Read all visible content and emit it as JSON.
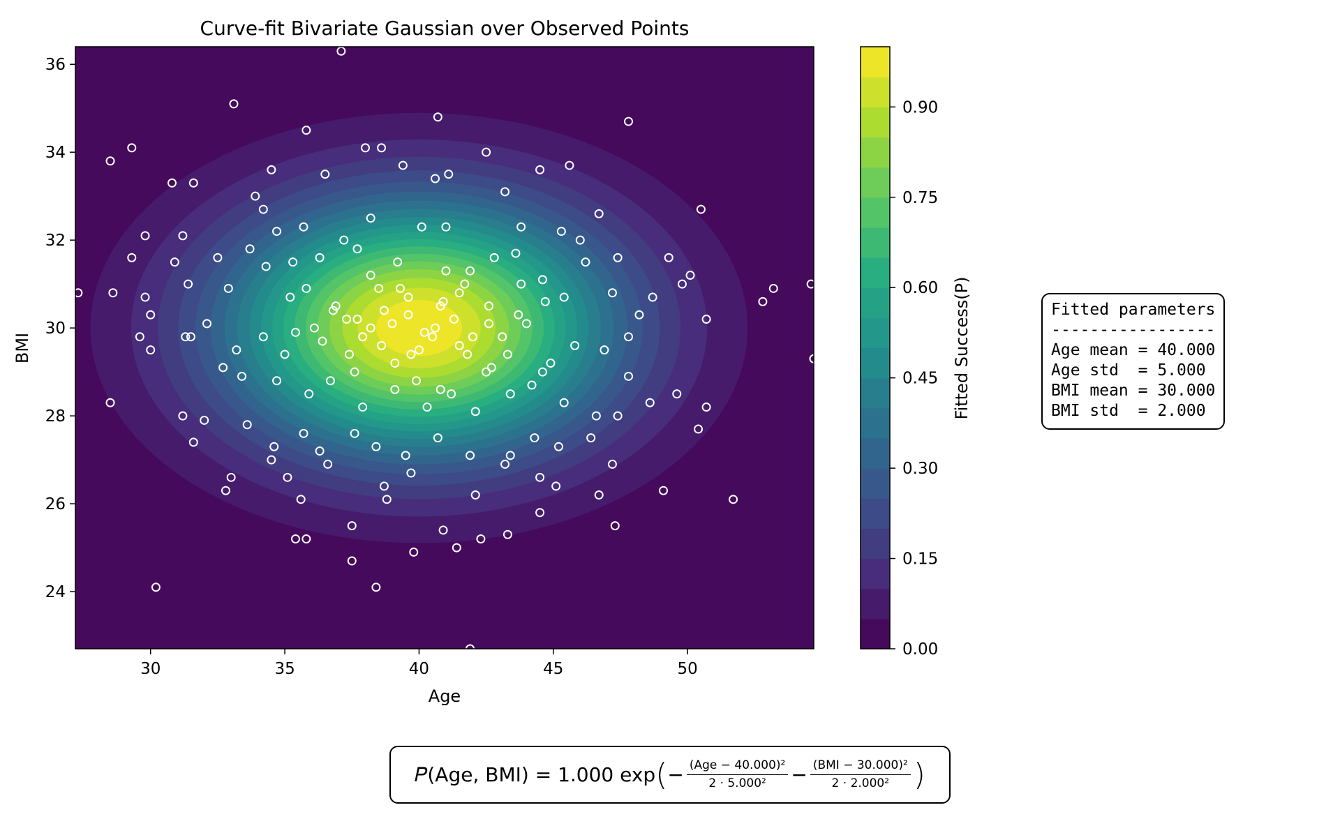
{
  "chart_data": {
    "type": "scatter",
    "title": "Curve-fit Bivariate Gaussian over Observed Points",
    "xlabel": "Age",
    "ylabel": "BMI",
    "xlim": [
      27.2,
      54.7
    ],
    "ylim": [
      22.7,
      36.4
    ],
    "xticks": [
      30,
      35,
      40,
      45,
      50
    ],
    "yticks": [
      24,
      26,
      28,
      30,
      32,
      34,
      36
    ],
    "grid": false,
    "background": "contourf",
    "colormap": "viridis",
    "colorbar": {
      "label": "Fitted Success(P)",
      "ticks": [
        "0.00",
        "0.15",
        "0.30",
        "0.45",
        "0.60",
        "0.75",
        "0.90"
      ],
      "range": [
        0,
        1
      ],
      "levels": 20
    },
    "fit": {
      "amplitude": 1.0,
      "age_mean": 40.0,
      "age_std": 5.0,
      "bmi_mean": 30.0,
      "bmi_std": 2.0
    },
    "points": [
      [
        37.1,
        36.3
      ],
      [
        33.1,
        35.1
      ],
      [
        40.7,
        34.8
      ],
      [
        47.8,
        34.7
      ],
      [
        29.3,
        34.1
      ],
      [
        35.8,
        34.5
      ],
      [
        31.6,
        33.3
      ],
      [
        30.8,
        33.3
      ],
      [
        28.5,
        33.8
      ],
      [
        34.5,
        33.6
      ],
      [
        36.5,
        33.5
      ],
      [
        38.0,
        34.1
      ],
      [
        38.6,
        34.1
      ],
      [
        39.4,
        33.7
      ],
      [
        40.6,
        33.4
      ],
      [
        41.1,
        33.5
      ],
      [
        42.5,
        34.0
      ],
      [
        44.5,
        33.6
      ],
      [
        45.6,
        33.7
      ],
      [
        46.7,
        32.6
      ],
      [
        50.5,
        32.7
      ],
      [
        43.2,
        33.1
      ],
      [
        33.9,
        33.0
      ],
      [
        34.2,
        32.7
      ],
      [
        35.7,
        32.3
      ],
      [
        34.7,
        32.2
      ],
      [
        37.2,
        32.0
      ],
      [
        38.2,
        32.5
      ],
      [
        40.1,
        32.3
      ],
      [
        41.0,
        32.3
      ],
      [
        43.8,
        32.3
      ],
      [
        45.3,
        32.2
      ],
      [
        46.0,
        32.0
      ],
      [
        29.8,
        32.1
      ],
      [
        31.2,
        32.1
      ],
      [
        32.5,
        31.6
      ],
      [
        33.7,
        31.8
      ],
      [
        34.3,
        31.4
      ],
      [
        35.3,
        31.5
      ],
      [
        36.3,
        31.6
      ],
      [
        37.7,
        31.8
      ],
      [
        39.2,
        31.5
      ],
      [
        41.0,
        31.3
      ],
      [
        42.8,
        31.6
      ],
      [
        43.6,
        31.7
      ],
      [
        44.6,
        31.1
      ],
      [
        46.2,
        31.5
      ],
      [
        47.4,
        31.6
      ],
      [
        49.3,
        31.6
      ],
      [
        29.3,
        31.6
      ],
      [
        30.9,
        31.5
      ],
      [
        31.4,
        31.0
      ],
      [
        32.9,
        30.9
      ],
      [
        35.2,
        30.7
      ],
      [
        35.8,
        30.9
      ],
      [
        36.8,
        30.4
      ],
      [
        37.7,
        30.2
      ],
      [
        38.5,
        30.9
      ],
      [
        39.6,
        30.7
      ],
      [
        40.8,
        30.5
      ],
      [
        41.7,
        31.0
      ],
      [
        42.6,
        30.5
      ],
      [
        43.7,
        30.3
      ],
      [
        44.7,
        30.6
      ],
      [
        45.4,
        30.7
      ],
      [
        47.2,
        30.8
      ],
      [
        48.7,
        30.7
      ],
      [
        49.8,
        31.0
      ],
      [
        50.1,
        31.2
      ],
      [
        52.8,
        30.6
      ],
      [
        53.2,
        30.9
      ],
      [
        27.3,
        30.8
      ],
      [
        28.6,
        30.8
      ],
      [
        29.8,
        30.7
      ],
      [
        30.0,
        30.3
      ],
      [
        31.5,
        29.8
      ],
      [
        32.1,
        30.1
      ],
      [
        33.2,
        29.5
      ],
      [
        34.2,
        29.8
      ],
      [
        35.4,
        29.9
      ],
      [
        36.4,
        29.7
      ],
      [
        37.4,
        29.4
      ],
      [
        38.6,
        29.6
      ],
      [
        39.7,
        29.4
      ],
      [
        40.5,
        29.8
      ],
      [
        41.5,
        29.6
      ],
      [
        42.7,
        29.1
      ],
      [
        43.3,
        29.4
      ],
      [
        44.6,
        29.0
      ],
      [
        45.8,
        29.6
      ],
      [
        46.9,
        29.5
      ],
      [
        47.8,
        29.8
      ],
      [
        48.2,
        30.3
      ],
      [
        50.7,
        30.2
      ],
      [
        54.6,
        31.0
      ],
      [
        54.7,
        29.3
      ],
      [
        29.6,
        29.8
      ],
      [
        30.0,
        29.5
      ],
      [
        31.3,
        29.8
      ],
      [
        32.7,
        29.1
      ],
      [
        33.4,
        28.9
      ],
      [
        34.7,
        28.8
      ],
      [
        35.9,
        28.5
      ],
      [
        36.7,
        28.8
      ],
      [
        37.9,
        28.2
      ],
      [
        39.1,
        28.6
      ],
      [
        40.3,
        28.2
      ],
      [
        41.2,
        28.5
      ],
      [
        42.1,
        28.1
      ],
      [
        43.4,
        28.5
      ],
      [
        44.2,
        28.7
      ],
      [
        45.4,
        28.3
      ],
      [
        46.6,
        28.0
      ],
      [
        47.8,
        28.9
      ],
      [
        48.6,
        28.3
      ],
      [
        50.7,
        28.2
      ],
      [
        49.6,
        28.5
      ],
      [
        28.5,
        28.3
      ],
      [
        31.2,
        28.0
      ],
      [
        32.0,
        27.9
      ],
      [
        33.6,
        27.8
      ],
      [
        34.6,
        27.3
      ],
      [
        35.7,
        27.6
      ],
      [
        36.3,
        27.2
      ],
      [
        37.6,
        27.6
      ],
      [
        38.4,
        27.3
      ],
      [
        39.5,
        27.1
      ],
      [
        40.7,
        27.5
      ],
      [
        41.9,
        27.1
      ],
      [
        43.4,
        27.1
      ],
      [
        44.3,
        27.5
      ],
      [
        45.2,
        27.3
      ],
      [
        46.4,
        27.5
      ],
      [
        47.4,
        28.0
      ],
      [
        50.4,
        27.7
      ],
      [
        31.6,
        27.4
      ],
      [
        33.0,
        26.6
      ],
      [
        32.8,
        26.3
      ],
      [
        34.5,
        27.0
      ],
      [
        35.1,
        26.6
      ],
      [
        36.6,
        26.9
      ],
      [
        38.7,
        26.4
      ],
      [
        39.7,
        26.7
      ],
      [
        42.1,
        26.2
      ],
      [
        43.2,
        26.9
      ],
      [
        44.5,
        26.6
      ],
      [
        45.1,
        26.4
      ],
      [
        46.7,
        26.2
      ],
      [
        47.2,
        26.9
      ],
      [
        49.1,
        26.3
      ],
      [
        51.7,
        26.1
      ],
      [
        35.6,
        26.1
      ],
      [
        38.8,
        26.1
      ],
      [
        37.5,
        25.5
      ],
      [
        40.9,
        25.4
      ],
      [
        44.5,
        25.8
      ],
      [
        47.3,
        25.5
      ],
      [
        35.4,
        25.2
      ],
      [
        35.8,
        25.2
      ],
      [
        42.3,
        25.2
      ],
      [
        43.3,
        25.3
      ],
      [
        37.5,
        24.7
      ],
      [
        39.8,
        24.9
      ],
      [
        41.4,
        25.0
      ],
      [
        30.2,
        24.1
      ],
      [
        38.4,
        24.1
      ],
      [
        41.9,
        22.7
      ],
      [
        39.0,
        30.1
      ],
      [
        40.2,
        29.9
      ],
      [
        41.3,
        30.2
      ],
      [
        39.6,
        30.3
      ],
      [
        40.6,
        30.0
      ],
      [
        38.2,
        30.0
      ],
      [
        42.0,
        29.8
      ],
      [
        37.9,
        29.8
      ],
      [
        40.9,
        30.6
      ],
      [
        39.1,
        29.2
      ],
      [
        41.8,
        29.4
      ],
      [
        38.7,
        30.4
      ],
      [
        40.0,
        29.5
      ],
      [
        41.5,
        30.8
      ],
      [
        39.3,
        30.9
      ],
      [
        42.6,
        30.1
      ],
      [
        37.3,
        30.2
      ],
      [
        43.1,
        29.8
      ],
      [
        36.1,
        30.0
      ],
      [
        44.0,
        30.1
      ],
      [
        38.2,
        31.2
      ],
      [
        41.9,
        31.3
      ],
      [
        39.9,
        28.8
      ],
      [
        40.8,
        28.6
      ],
      [
        37.6,
        29.0
      ],
      [
        42.5,
        29.0
      ],
      [
        36.9,
        30.5
      ],
      [
        43.8,
        31.0
      ],
      [
        35.0,
        29.4
      ],
      [
        44.9,
        29.2
      ]
    ]
  },
  "params_box": {
    "title": "Fitted parameters",
    "rule": "-----------------",
    "lines": [
      "Age mean = 40.000",
      "Age std  = 5.000",
      "BMI mean = 30.000",
      "BMI std  = 2.000"
    ]
  },
  "formula": {
    "lhs": "𝑃(Age, BMI) = 1.000 exp",
    "open": "(",
    "minus1": "−",
    "num1": "(Age − 40.000)²",
    "den1": "2 · 5.000²",
    "minus2": "−",
    "num2": "(BMI − 30.000)²",
    "den2": "2 · 2.000²",
    "close": ")"
  }
}
